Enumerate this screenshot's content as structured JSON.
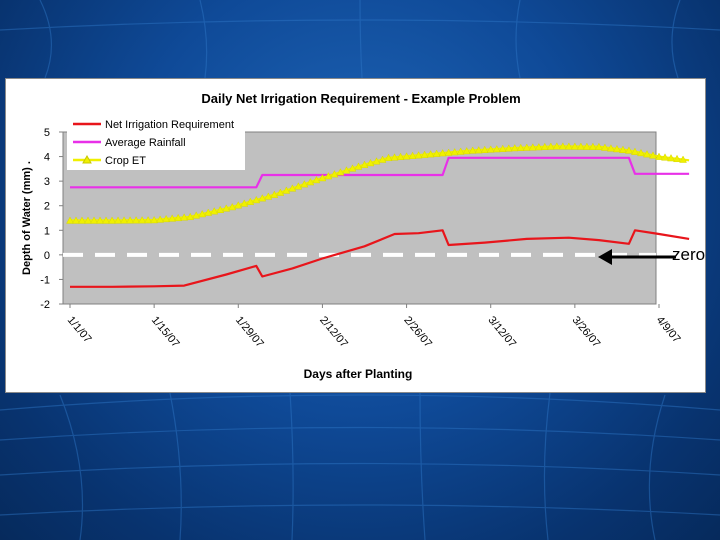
{
  "slide": {
    "annotation": "zero",
    "colors": {
      "background": "#0f4a98",
      "plot_area": "#c0c0c0",
      "zero_line": "#ffffff"
    }
  },
  "chart_data": {
    "type": "line",
    "title": "Daily Net Irrigation Requirement - Example Problem",
    "xlabel": "Days after Planting",
    "ylabel": "Depth of Water (mm) .",
    "ylim": [
      -2,
      5
    ],
    "yticks": [
      "-2",
      "-1",
      "0",
      "1",
      "2",
      "3",
      "4",
      "5"
    ],
    "xlim": [
      "1/1/07",
      "4/9/07"
    ],
    "xticks": [
      "1/1/07",
      "1/15/07",
      "1/29/07",
      "2/12/07",
      "2/26/07",
      "3/12/07",
      "3/26/07",
      "4/9/07"
    ],
    "grid": false,
    "legend": "top-left",
    "series": [
      {
        "name": "Net Irrigation Requirement",
        "color": "#e8151b",
        "marker": "none",
        "points": [
          [
            "1/1/07",
            -1.3
          ],
          [
            "1/8/07",
            -1.3
          ],
          [
            "1/15/07",
            -1.28
          ],
          [
            "1/20/07",
            -1.25
          ],
          [
            "1/27/07",
            -0.8
          ],
          [
            "2/1/07",
            -0.45
          ],
          [
            "2/2/07",
            -0.88
          ],
          [
            "2/7/07",
            -0.55
          ],
          [
            "2/12/07",
            -0.15
          ],
          [
            "2/19/07",
            0.35
          ],
          [
            "2/24/07",
            0.85
          ],
          [
            "2/28/07",
            0.88
          ],
          [
            "3/4/07",
            1.0
          ],
          [
            "3/5/07",
            0.4
          ],
          [
            "3/11/07",
            0.5
          ],
          [
            "3/18/07",
            0.65
          ],
          [
            "3/25/07",
            0.7
          ],
          [
            "3/30/07",
            0.6
          ],
          [
            "4/4/07",
            0.45
          ],
          [
            "4/5/07",
            1.0
          ],
          [
            "4/9/07",
            0.85
          ],
          [
            "4/14/07",
            0.65
          ]
        ]
      },
      {
        "name": "Average Rainfall",
        "color": "#e830e8",
        "marker": "none",
        "points": [
          [
            "1/1/07",
            2.75
          ],
          [
            "2/1/07",
            2.75
          ],
          [
            "2/2/07",
            3.25
          ],
          [
            "3/4/07",
            3.25
          ],
          [
            "3/5/07",
            3.95
          ],
          [
            "4/4/07",
            3.95
          ],
          [
            "4/5/07",
            3.3
          ],
          [
            "4/14/07",
            3.3
          ]
        ]
      },
      {
        "name": "Crop ET",
        "color": "#f0f000",
        "marker": "triangle",
        "points": [
          [
            "1/1/07",
            1.4
          ],
          [
            "1/8/07",
            1.4
          ],
          [
            "1/15/07",
            1.42
          ],
          [
            "1/21/07",
            1.55
          ],
          [
            "1/28/07",
            1.95
          ],
          [
            "2/4/07",
            2.45
          ],
          [
            "2/11/07",
            3.05
          ],
          [
            "2/18/07",
            3.6
          ],
          [
            "2/23/07",
            3.95
          ],
          [
            "3/2/07",
            4.1
          ],
          [
            "3/9/07",
            4.25
          ],
          [
            "3/16/07",
            4.35
          ],
          [
            "3/23/07",
            4.42
          ],
          [
            "3/30/07",
            4.4
          ],
          [
            "4/4/07",
            4.25
          ],
          [
            "4/9/07",
            4.0
          ],
          [
            "4/14/07",
            3.85
          ]
        ]
      }
    ]
  }
}
